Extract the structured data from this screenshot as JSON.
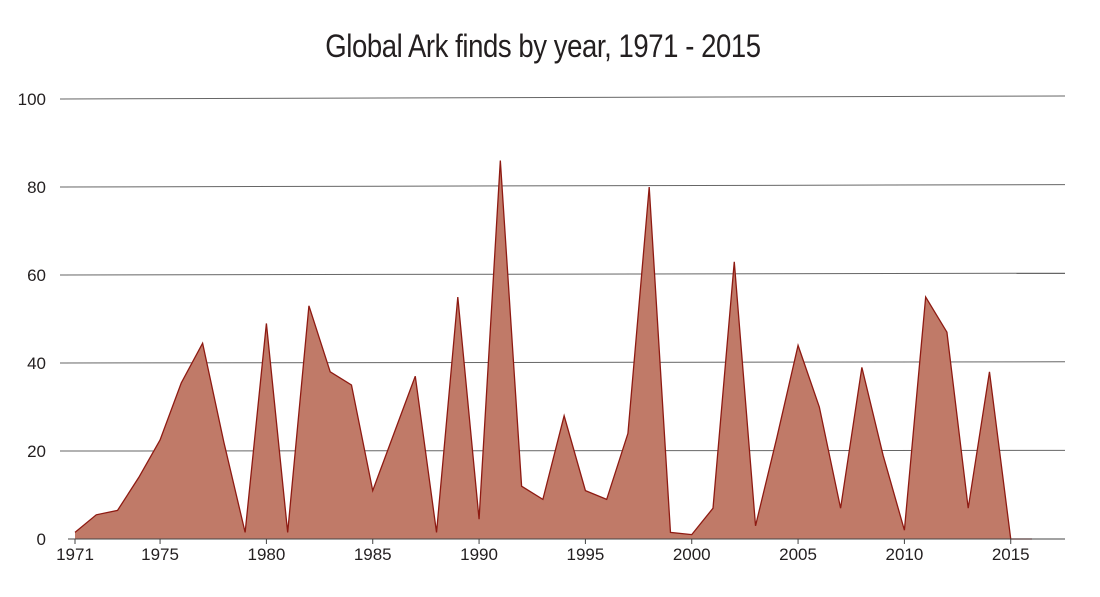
{
  "chart_data": {
    "type": "area",
    "title": "Global Ark finds by year, 1971 - 2015",
    "xlabel": "",
    "ylabel": "",
    "xlim": [
      1971,
      2016
    ],
    "ylim": [
      0,
      100
    ],
    "grid": true,
    "legend": "none",
    "x_ticks": [
      1971,
      1975,
      1980,
      1985,
      1990,
      1995,
      2000,
      2005,
      2010,
      2015
    ],
    "x_tick_labels": [
      "1971",
      "1975",
      "1980",
      "1985",
      "1990",
      "1995",
      "2000",
      "2005",
      "2010",
      "2015"
    ],
    "y_ticks": [
      0,
      20,
      40,
      60,
      80,
      100
    ],
    "y_tick_labels": [
      "0",
      "20",
      "40",
      "60",
      "80",
      "100"
    ],
    "series": [
      {
        "x": [
          1971,
          1972,
          1973,
          1974,
          1975,
          1976,
          1977,
          1978,
          1979,
          1980,
          1981,
          1982,
          1983,
          1984,
          1985,
          1986,
          1987,
          1988,
          1989,
          1990,
          1991,
          1992,
          1993,
          1994,
          1995,
          1996,
          1997,
          1998,
          1999,
          2000,
          2001,
          2002,
          2003,
          2004,
          2005,
          2006,
          2007,
          2008,
          2009,
          2010,
          2011,
          2012,
          2013,
          2014,
          2015,
          2016
        ],
        "values": [
          1.5,
          5.5,
          6.5,
          14,
          22.5,
          35.5,
          44.5,
          22,
          1.5,
          49,
          1.5,
          53,
          38,
          35,
          11,
          24,
          37,
          1.5,
          55,
          4.5,
          86,
          12,
          9,
          28,
          11,
          9,
          24,
          80,
          1.5,
          1,
          7,
          63,
          3,
          23,
          44,
          30,
          7,
          39,
          19,
          2,
          55,
          47,
          7,
          38,
          0,
          0
        ]
      }
    ],
    "colors": {
      "area_fill": "#c07a68",
      "area_stroke": "#8e1a12",
      "gridline": "#666666",
      "axis": "#444444",
      "text": "#231f20"
    }
  }
}
